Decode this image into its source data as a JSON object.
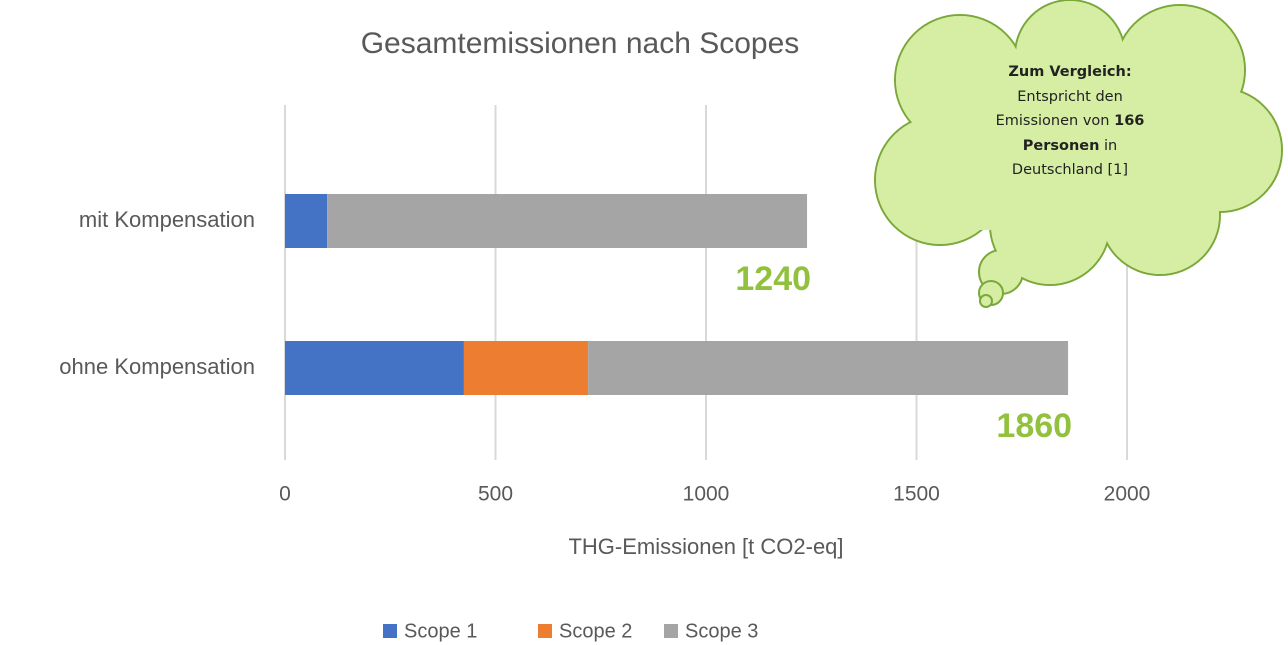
{
  "chart_data": {
    "type": "stacked-bar-horizontal",
    "title": "Gesamtemissionen nach Scopes",
    "categories": [
      "mit Kompensation",
      "ohne Kompensation"
    ],
    "series": [
      {
        "name": "Scope 1",
        "color": "#4472c4",
        "values": [
          100,
          425
        ]
      },
      {
        "name": "Scope 2",
        "color": "#ed7d31",
        "values": [
          0,
          295
        ]
      },
      {
        "name": "Scope 3",
        "color": "#a5a5a5",
        "values": [
          1140,
          1140
        ]
      }
    ],
    "totals": [
      1240,
      1860
    ],
    "totals_color": "#92c13e",
    "xlim": [
      0,
      2000
    ],
    "xticks": [
      0,
      500,
      1000,
      1500,
      2000
    ],
    "x_label": "THG-Emissionen [t CO2-eq]",
    "grid": true,
    "legend": "bottom",
    "callout": {
      "heading": "Zum Vergleich:",
      "text_before": "Entspricht den Emissionen von",
      "highlight": "166 Personen",
      "text_after": "in Deutschland [1]"
    }
  }
}
